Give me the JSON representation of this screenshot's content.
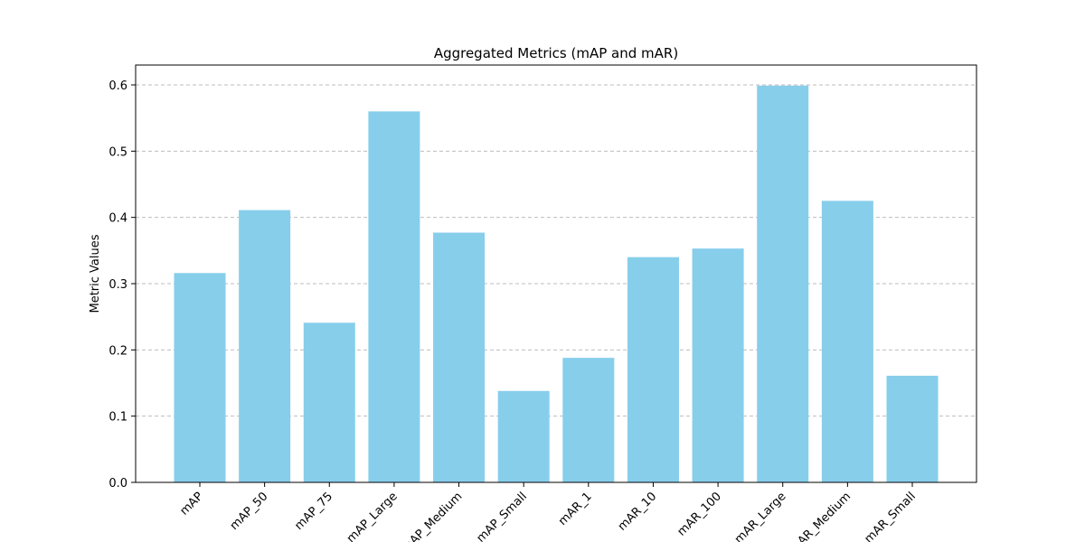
{
  "chart_data": {
    "type": "bar",
    "title": "Aggregated Metrics (mAP and mAR)",
    "xlabel": "",
    "ylabel": "Metric Values",
    "categories": [
      "mAP",
      "mAP_50",
      "mAP_75",
      "mAP_Large",
      "mAP_Medium",
      "mAP_Small",
      "mAR_1",
      "mAR_10",
      "mAR_100",
      "mAR_Large",
      "mAR_Medium",
      "mAR_Small"
    ],
    "values": [
      0.316,
      0.411,
      0.241,
      0.56,
      0.377,
      0.138,
      0.188,
      0.34,
      0.353,
      0.599,
      0.425,
      0.161
    ],
    "ylim": [
      0.0,
      0.63
    ],
    "yticks": [
      0.0,
      0.1,
      0.2,
      0.3,
      0.4,
      0.5,
      0.6
    ],
    "ytick_labels": [
      "0.0",
      "0.1",
      "0.2",
      "0.3",
      "0.4",
      "0.5",
      "0.6"
    ],
    "grid": true,
    "bar_color": "#87ceeb",
    "grid_color": "#bdbdbd"
  }
}
